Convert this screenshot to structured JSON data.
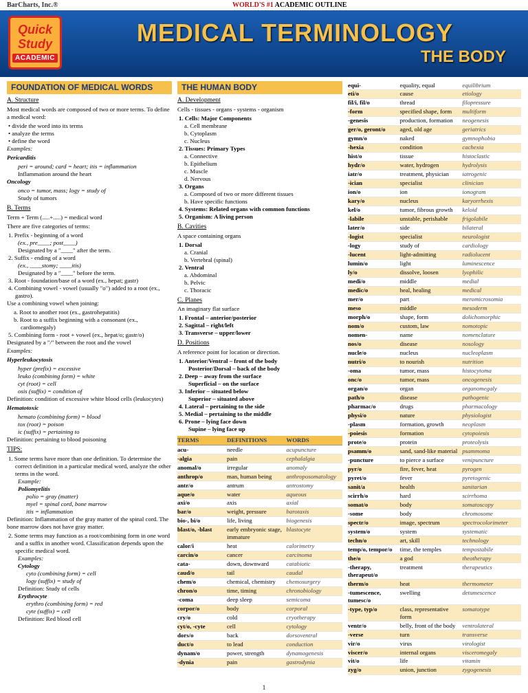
{
  "top": {
    "company": "BarCharts, Inc.®",
    "tagline_red": "WORLD'S #1",
    "tagline_black": " ACADEMIC OUTLINE"
  },
  "badge": {
    "line1": "Quick",
    "line2": "Study",
    "academic": "ACADEMIC"
  },
  "title": {
    "main": "MEDICAL TERMINOLOGY",
    "sub": "THE BODY"
  },
  "col1": {
    "hdr": "FOUNDATION OF MEDICAL WORDS",
    "structure_hdr": "A. Structure",
    "structure_intro": "Most medical words are composed of two or more terms. To define a medical word:",
    "structure_bullets": [
      "• divide the word into its terms",
      "• analyze the terms",
      "• define the word"
    ],
    "examples_label": "Examples:",
    "peric_title": "Pericarditis",
    "peric_line": "peri = around; card = heart; itis = inflammation",
    "peric_def": "Inflammation around the heart",
    "onc_title": "Oncology",
    "onc_line": "onco = tumor, mass; logy = study of",
    "onc_def": "Study of tumors",
    "terms_hdr": "B. Terms",
    "terms_eq": "Term + Term (.....+.....) = medical word",
    "terms_5": "There are five categories of terms:",
    "t1": "1. Prefix - beginning of a word",
    "t1a": "(ex., pre____; post____)",
    "t1b": "Designated by a \"____\" after the term.",
    "t2": "2. Suffix - ending of a word",
    "t2a": "(ex., ____stomy; ____itis)",
    "t2b": "Designated by a \"____\" before the term.",
    "t3": "3. Root - foundation/base of a word (ex., hepat; gastr)",
    "t4": "4. Combining vowel - vowel (usually \"o\") added to a root (ex., gastro).",
    "cv_intro": "Use a combining vowel when joining:",
    "cv_a": "a. Root to another root (ex., gastrohepatitis)",
    "cv_b": "b. Root to a suffix beginning with a consonant (ex., cardiomegaly)",
    "t5": "5. Combining form - root + vowel (ex., hepat/o; gastr/o)",
    "slash": "Designated by a \"/\" between the root and the vowel",
    "ex2_label": "Examples:",
    "hyperleuk": "Hyperleukocytosis",
    "hl1": "hyper (prefix) = excessive",
    "hl2": "leuko (combining form) = white",
    "hl3": "cyt (root) = cell",
    "hl4": "osis (suffix) = condition of",
    "hl_def": "Definition: condition of excessive white blood cells (leukocytes)",
    "hemat": "Hematotoxic",
    "hm1": "hemato (combining form) = blood",
    "hm2": "tox (root) = poison",
    "hm3": "ic (suffix) = pertaining to",
    "hm_def": "Definition: pertaining to blood poisoning",
    "tips_hdr": "TIPS:",
    "tip1": "1. Some terms have more than one definition. To determine the correct definition in a particular medical word, analyze the other terms in the word.",
    "tip1_ex": "Example:",
    "polio": "Poliomyelitis",
    "p1": "polio = gray (matter)",
    "p2": "myel = spinal cord, bone marrow",
    "p3": "itis = inflammation",
    "p_def": "Definition: Inflammation of the gray matter of the spinal cord. The bone marrow does not have gray matter.",
    "tip2": "2. Some terms may function as a root/combining form in one word and a suffix in another word. Classification depends upon the specific medical word.",
    "tip2_ex": "Examples:",
    "cytology": "Cytology",
    "c1": "cyto (combining form) = cell",
    "c2": "logy (suffix) = study of",
    "c_def": "Definition: Study of cells",
    "eryth": "Erythrocyte",
    "e1": "erythro (combining form) = red",
    "e2": "cyte (suffix) = cell",
    "e_def": "Definition: Red blood cell"
  },
  "col2": {
    "hdr": "THE HUMAN BODY",
    "dev_hdr": "A. Development",
    "dev_line": "Cells - tissues - organs - systems - organism",
    "d1": "1. Cells: Major Components",
    "d1a": "a. Cell membrane",
    "d1b": "b. Cytoplasm",
    "d1c": "c. Nucleus",
    "d2": "2. Tissues: Primary Types",
    "d2a": "a. Connective",
    "d2b": "b. Epithelium",
    "d2c": "c. Muscle",
    "d2d": "d. Nervous",
    "d3": "3. Organs",
    "d3a": "a. Composed of two or more different tissues",
    "d3b": "b. Have specific functions",
    "d4": "4. Systems: Related organs with common functions",
    "d5": "5. Organism: A living person",
    "cav_hdr": "B. Cavities",
    "cav_line": "A space containing organs",
    "cv1": "1. Dorsal",
    "cv1a": "a. Cranial",
    "cv1b": "b. Vertebral (spinal)",
    "cv2": "2. Ventral",
    "cv2a": "a. Abdominal",
    "cv2b": "b. Pelvic",
    "cv2c": "c. Thoracic",
    "pl_hdr": "C. Planes",
    "pl_line": "An imaginary flat surface",
    "pl1": "1. Frontal – anterior/posterior",
    "pl2": "2. Sagittal – right/left",
    "pl3": "3. Transverse – upper/lower",
    "pos_hdr": "D. Positions",
    "pos_line": "A reference point for location or direction.",
    "ps1": "1. Anterior/Ventral – front of the body",
    "ps1b": "Posterior/Dorsal – back of the body",
    "ps2": "2. Deep – away from the surface",
    "ps2b": "Superficial – on the surface",
    "ps3": "3. Inferior – situated below",
    "ps3b": "Superior – situated above",
    "ps4": "4. Lateral – pertaining to the side",
    "ps5": "5. Medial – pertaining to the middle",
    "ps6": "6. Prone – lying face down",
    "ps6b": "Supine – lying face up",
    "thdr": {
      "t": "TERMS",
      "d": "DEFINITIONS",
      "w": "WORDS"
    },
    "rows": [
      {
        "t": "acu-",
        "d": "needle",
        "w": "acupuncture",
        "s": 0
      },
      {
        "t": "-algia",
        "d": "pain",
        "w": "cephalalgia",
        "s": 1
      },
      {
        "t": "anomal/o",
        "d": "irregular",
        "w": "anomaly",
        "s": 0
      },
      {
        "t": "anthrop/o",
        "d": "man, human being",
        "w": "anthroposomatology",
        "s": 1
      },
      {
        "t": "antr/o",
        "d": "antrum",
        "w": "antrostomy",
        "s": 0
      },
      {
        "t": "aque/o",
        "d": "water",
        "w": "aqueous",
        "s": 1
      },
      {
        "t": "axi/o",
        "d": "axis",
        "w": "axial",
        "s": 0
      },
      {
        "t": "bar/o",
        "d": "weight, pressure",
        "w": "barotaxis",
        "s": 1
      },
      {
        "t": "bio-, bi/o",
        "d": "life, living",
        "w": "biogenesis",
        "s": 0
      },
      {
        "t": "blast/o, -blast",
        "d": "early embryonic stage, immature",
        "w": "blastocyte",
        "s": 1
      },
      {
        "t": "calor/i",
        "d": "heat",
        "w": "calorimetry",
        "s": 0
      },
      {
        "t": "carcin/o",
        "d": "cancer",
        "w": "carcinoma",
        "s": 1
      },
      {
        "t": "cata-",
        "d": "down, downward",
        "w": "catabiotic",
        "s": 0
      },
      {
        "t": "caud/o",
        "d": "tail",
        "w": "caudal",
        "s": 1
      },
      {
        "t": "chem/o",
        "d": "chemical, chemistry",
        "w": "chemosurgery",
        "s": 0
      },
      {
        "t": "chron/o",
        "d": "time, timing",
        "w": "chronobiology",
        "s": 1
      },
      {
        "t": "-coma",
        "d": "deep sleep",
        "w": "semicoma",
        "s": 0
      },
      {
        "t": "corpor/o",
        "d": "body",
        "w": "corporal",
        "s": 1
      },
      {
        "t": "cry/o",
        "d": "cold",
        "w": "cryotherapy",
        "s": 0
      },
      {
        "t": "cyt/o, -cyte",
        "d": "cell",
        "w": "cytology",
        "s": 1
      },
      {
        "t": "dors/o",
        "d": "back",
        "w": "dorsoventral",
        "s": 0
      },
      {
        "t": "duct/o",
        "d": "to lead",
        "w": "conduction",
        "s": 1
      },
      {
        "t": "dynam/o",
        "d": "power, strength",
        "w": "dynamogenesis",
        "s": 0
      },
      {
        "t": "-dynia",
        "d": "pain",
        "w": "gastrodynia",
        "s": 1
      }
    ]
  },
  "col3": {
    "rows": [
      {
        "t": "equi-",
        "d": "equality, equal",
        "w": "equilibrium",
        "s": 0
      },
      {
        "t": "eti/o",
        "d": "cause",
        "w": "etiology",
        "s": 1
      },
      {
        "t": "fil/i, fil/o",
        "d": "thread",
        "w": "filopressure",
        "s": 0
      },
      {
        "t": "-form",
        "d": "specified shape, form",
        "w": "multiform",
        "s": 1
      },
      {
        "t": "-genesis",
        "d": "production, formation",
        "w": "neogenesis",
        "s": 0
      },
      {
        "t": "ger/o, geront/o",
        "d": "aged, old age",
        "w": "geriatrics",
        "s": 1
      },
      {
        "t": "gymn/o",
        "d": "naked",
        "w": "gymnophobia",
        "s": 0
      },
      {
        "t": "-hexia",
        "d": "condition",
        "w": "cachexia",
        "s": 1
      },
      {
        "t": "hist/o",
        "d": "tissue",
        "w": "histoclastic",
        "s": 0
      },
      {
        "t": "hydr/o",
        "d": "water, hydrogen",
        "w": "hydrolysis",
        "s": 1
      },
      {
        "t": "iatr/o",
        "d": "treatment, physician",
        "w": "iatrogenic",
        "s": 0
      },
      {
        "t": "-ician",
        "d": "specialist",
        "w": "clinician",
        "s": 1
      },
      {
        "t": "ion/o",
        "d": "ion",
        "w": "ionogram",
        "s": 0
      },
      {
        "t": "kary/o",
        "d": "nucleus",
        "w": "karyorrhexis",
        "s": 1
      },
      {
        "t": "kel/o",
        "d": "tumor, fibrous growth",
        "w": "keloid",
        "s": 0
      },
      {
        "t": "-labile",
        "d": "unstable, perishable",
        "w": "frigolabile",
        "s": 1
      },
      {
        "t": "later/o",
        "d": "side",
        "w": "bilateral",
        "s": 0
      },
      {
        "t": "-logist",
        "d": "specialist",
        "w": "neurologist",
        "s": 1
      },
      {
        "t": "-logy",
        "d": "study of",
        "w": "cardiology",
        "s": 0
      },
      {
        "t": "-lucent",
        "d": "light-admitting",
        "w": "radiolucent",
        "s": 1
      },
      {
        "t": "lumin/o",
        "d": "light",
        "w": "luminescence",
        "s": 0
      },
      {
        "t": "ly/o",
        "d": "dissolve, loosen",
        "w": "lyophilic",
        "s": 1
      },
      {
        "t": "medi/o",
        "d": "middle",
        "w": "medial",
        "s": 0
      },
      {
        "t": "medic/o",
        "d": "heal, healing",
        "w": "medical",
        "s": 1
      },
      {
        "t": "mer/o",
        "d": "part",
        "w": "meromicrosomia",
        "s": 0
      },
      {
        "t": "meso",
        "d": "middle",
        "w": "mesoderm",
        "s": 1
      },
      {
        "t": "morph/o",
        "d": "shape, form",
        "w": "dolichomorphic",
        "s": 0
      },
      {
        "t": "nom/o",
        "d": "custom, law",
        "w": "nomotopic",
        "s": 1
      },
      {
        "t": "nomen-",
        "d": "name",
        "w": "nomenclature",
        "s": 0
      },
      {
        "t": "nos/o",
        "d": "disease",
        "w": "nosology",
        "s": 1
      },
      {
        "t": "nucle/o",
        "d": "nucleus",
        "w": "nucleoplasm",
        "s": 0
      },
      {
        "t": "nutri/o",
        "d": "to nourish",
        "w": "nutrition",
        "s": 1
      },
      {
        "t": "-oma",
        "d": "tumor, mass",
        "w": "histocytoma",
        "s": 0
      },
      {
        "t": "onc/o",
        "d": "tumor, mass",
        "w": "oncogenesis",
        "s": 1
      },
      {
        "t": "organ/o",
        "d": "organ",
        "w": "organomegaly",
        "s": 0
      },
      {
        "t": "path/o",
        "d": "disease",
        "w": "pathogenic",
        "s": 1
      },
      {
        "t": "pharmac/o",
        "d": "drugs",
        "w": "pharmacology",
        "s": 0
      },
      {
        "t": "physi/o",
        "d": "nature",
        "w": "physiologist",
        "s": 1
      },
      {
        "t": "-plasm",
        "d": "formation, growth",
        "w": "neoplasm",
        "s": 0
      },
      {
        "t": "-poiesis",
        "d": "formation",
        "w": "cytopoiesis",
        "s": 1
      },
      {
        "t": "prote/o",
        "d": "protein",
        "w": "proteolysis",
        "s": 0
      },
      {
        "t": "psamm/o",
        "d": "sand, sand-like material",
        "w": "psammoma",
        "s": 1
      },
      {
        "t": "-puncture",
        "d": "to pierce a surface",
        "w": "venipuncture",
        "s": 0
      },
      {
        "t": "pyr/o",
        "d": "fire, fever, heat",
        "w": "pyrogen",
        "s": 1
      },
      {
        "t": "pyret/o",
        "d": "fever",
        "w": "pyretogenic",
        "s": 0
      },
      {
        "t": "sanit/a",
        "d": "health",
        "w": "sanitarian",
        "s": 1
      },
      {
        "t": "scirrh/o",
        "d": "hard",
        "w": "scirrhoma",
        "s": 0
      },
      {
        "t": "somat/o",
        "d": "body",
        "w": "somatoscopy",
        "s": 1
      },
      {
        "t": "-some",
        "d": "body",
        "w": "chromosome",
        "s": 0
      },
      {
        "t": "spectr/o",
        "d": "image, spectrum",
        "w": "spectrocolorimeter",
        "s": 1
      },
      {
        "t": "system/o",
        "d": "system",
        "w": "systematic",
        "s": 0
      },
      {
        "t": "techn/o",
        "d": "art, skill",
        "w": "technology",
        "s": 1
      },
      {
        "t": "temp/o, tempor/o",
        "d": "time, the temples",
        "w": "tempostabile",
        "s": 0
      },
      {
        "t": "the/o",
        "d": "a god",
        "w": "theotherapy",
        "s": 1
      },
      {
        "t": "-therapy, therapeut/o",
        "d": "treatment",
        "w": "therapeutics",
        "s": 0
      },
      {
        "t": "therm/o",
        "d": "heat",
        "w": "thermometer",
        "s": 1
      },
      {
        "t": "-tumescence, tumesc/o",
        "d": "swelling",
        "w": "detumescence",
        "s": 0
      },
      {
        "t": "-type, typ/o",
        "d": "class, representative form",
        "w": "somatotype",
        "s": 1
      },
      {
        "t": "ventr/o",
        "d": "belly, front of the body",
        "w": "ventrolateral",
        "s": 0
      },
      {
        "t": "-verse",
        "d": "turn",
        "w": "transverse",
        "s": 1
      },
      {
        "t": "vir/o",
        "d": "virus",
        "w": "virologist",
        "s": 0
      },
      {
        "t": "viscer/o",
        "d": "internal organs",
        "w": "visceromegaly",
        "s": 1
      },
      {
        "t": "vit/o",
        "d": "life",
        "w": "vitamin",
        "s": 0
      },
      {
        "t": "zyg/o",
        "d": "union, junction",
        "w": "zygogenesis",
        "s": 1
      }
    ]
  },
  "pagenum": "1"
}
